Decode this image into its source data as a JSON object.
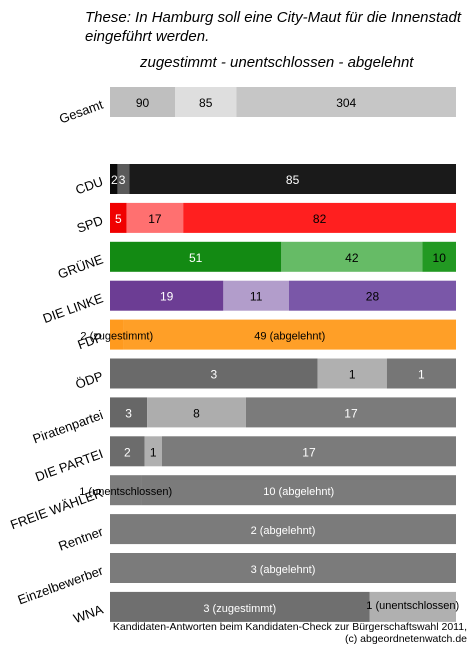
{
  "title": "These: In Hamburg soll eine City-Maut für die Innenstadt eingeführt werden.",
  "subtitle": "zugestimmt - unentschlossen - abgelehnt",
  "source_line1": "Kandidaten-Antworten beim Kandidaten-Check zur Bürgerschaftswahl 2011,",
  "source_line2": "(c) abgeordnetenwatch.de",
  "chart_data": {
    "type": "bar",
    "orientation": "horizontal",
    "stacked": "percent",
    "series_order": [
      "zugestimmt",
      "unentschlossen",
      "abgelehnt"
    ],
    "categories": [
      "Gesamt",
      "CDU",
      "SPD",
      "GRÜNE",
      "DIE LINKE",
      "FDP",
      "ÖDP",
      "Piratenpartei",
      "DIE PARTEI",
      "FREIE WÄHLER",
      "Rentner",
      "Einzelbewerber",
      "WNA"
    ],
    "rows": [
      {
        "label": "Gesamt",
        "values": [
          90,
          85,
          304
        ],
        "colors": [
          "#bfbfbf",
          "#dedede",
          "#c6c6c6"
        ],
        "text": [
          "90",
          "85",
          "304"
        ],
        "text_color": [
          "#000000",
          "#000000",
          "#000000"
        ]
      },
      {
        "label": "CDU",
        "values": [
          2,
          3,
          85
        ],
        "colors": [
          "#0a0a0a",
          "#5a5a5a",
          "#1a1a1a"
        ],
        "text": [
          "2",
          "3",
          "85"
        ],
        "text_color": [
          "#ffffff",
          "#ffffff",
          "#ffffff"
        ]
      },
      {
        "label": "SPD",
        "values": [
          5,
          17,
          82
        ],
        "colors": [
          "#f00000",
          "#ff7070",
          "#ff1f1f"
        ],
        "text": [
          "5",
          "17",
          "82"
        ],
        "text_color": [
          "#ffffff",
          "#000000",
          "#000000"
        ]
      },
      {
        "label": "GRÜNE",
        "values": [
          51,
          42,
          10
        ],
        "colors": [
          "#138a13",
          "#66bb66",
          "#229922"
        ],
        "text": [
          "51",
          "42",
          "10"
        ],
        "text_color": [
          "#ffffff",
          "#000000",
          "#000000"
        ]
      },
      {
        "label": "DIE LINKE",
        "values": [
          19,
          11,
          28
        ],
        "colors": [
          "#6c3d94",
          "#b29dcb",
          "#7a57a8"
        ],
        "text": [
          "19",
          "11",
          "28"
        ],
        "text_color": [
          "#ffffff",
          "#000000",
          "#000000"
        ]
      },
      {
        "label": "FDP",
        "values": [
          2,
          0,
          49
        ],
        "colors": [
          "#ff9a1e",
          "#ffc070",
          "#ff9f27"
        ],
        "text": [
          "2 (zugestimmt)",
          "",
          "49 (abgelehnt)"
        ],
        "text_color": [
          "#000000",
          "#000000",
          "#000000"
        ]
      },
      {
        "label": "ÖDP",
        "values": [
          3,
          1,
          1
        ],
        "colors": [
          "#6a6a6a",
          "#b0b0b0",
          "#767676"
        ],
        "text": [
          "3",
          "1",
          "1"
        ],
        "text_color": [
          "#ffffff",
          "#000000",
          "#ffffff"
        ]
      },
      {
        "label": "Piratenpartei",
        "values": [
          3,
          8,
          17
        ],
        "colors": [
          "#676767",
          "#adadad",
          "#7b7b7b"
        ],
        "text": [
          "3",
          "8",
          "17"
        ],
        "text_color": [
          "#ffffff",
          "#000000",
          "#ffffff"
        ]
      },
      {
        "label": "DIE PARTEI",
        "values": [
          2,
          1,
          17
        ],
        "colors": [
          "#6c6c6c",
          "#b0b0b0",
          "#7b7b7b"
        ],
        "text": [
          "2",
          "1",
          "17"
        ],
        "text_color": [
          "#ffffff",
          "#000000",
          "#ffffff"
        ]
      },
      {
        "label": "FREIE WÄHLER",
        "values": [
          0,
          1,
          10
        ],
        "colors": [
          "#6c6c6c",
          "#7d7d7d",
          "#7b7b7b"
        ],
        "text": [
          "",
          "1 (unentschlossen)",
          "10 (abgelehnt)"
        ],
        "text_color": [
          "#ffffff",
          "#000000",
          "#ffffff"
        ]
      },
      {
        "label": "Rentner",
        "values": [
          0,
          0,
          2
        ],
        "colors": [
          "#6c6c6c",
          "#adadad",
          "#7b7b7b"
        ],
        "text": [
          "",
          "",
          "2 (abgelehnt)"
        ],
        "text_color": [
          "#ffffff",
          "#000000",
          "#ffffff"
        ]
      },
      {
        "label": "Einzelbewerber",
        "values": [
          0,
          0,
          3
        ],
        "colors": [
          "#6c6c6c",
          "#adadad",
          "#7b7b7b"
        ],
        "text": [
          "",
          "",
          "3 (abgelehnt)"
        ],
        "text_color": [
          "#ffffff",
          "#000000",
          "#ffffff"
        ]
      },
      {
        "label": "WNA",
        "values": [
          3,
          1,
          0
        ],
        "colors": [
          "#6f6f6f",
          "#b0b0b0",
          "#7b7b7b"
        ],
        "text": [
          "3 (zugestimmt)",
          "1 (unentschlossen)",
          ""
        ],
        "text_color": [
          "#ffffff",
          "#000000",
          "#ffffff"
        ]
      }
    ]
  }
}
